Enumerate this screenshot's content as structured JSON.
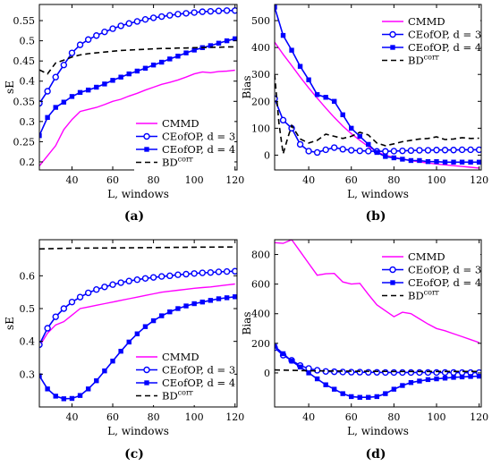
{
  "colors": {
    "cmmd": "#ff00ff",
    "ce3": "#0000ff",
    "ce4": "#0000ff",
    "bd": "#000000"
  },
  "chart_data": [
    {
      "type": "line",
      "caption": "(a)",
      "xlabel": "L, windows",
      "ylabel": "sE",
      "xlim": [
        24,
        121
      ],
      "ylim": [
        0.18,
        0.59
      ],
      "xticks": [
        40,
        60,
        80,
        100,
        120
      ],
      "yticks": [
        0.2,
        0.25,
        0.3,
        0.35,
        0.4,
        0.45,
        0.5,
        0.55
      ],
      "ytick_labels": [
        "0.2",
        "0.25",
        "0.3",
        "0.35",
        "0.4",
        "0.45",
        "0.5",
        "0.55"
      ],
      "legend_position": "bottom-right",
      "series": [
        {
          "name": "CMMD",
          "key": "cmmd",
          "x": [
            24,
            28,
            32,
            36,
            40,
            44,
            48,
            52,
            56,
            60,
            64,
            68,
            72,
            76,
            80,
            84,
            88,
            92,
            96,
            100,
            104,
            108,
            112,
            116,
            120
          ],
          "y": [
            0.19,
            0.215,
            0.24,
            0.28,
            0.305,
            0.325,
            0.33,
            0.335,
            0.342,
            0.35,
            0.355,
            0.363,
            0.37,
            0.378,
            0.385,
            0.392,
            0.397,
            0.403,
            0.41,
            0.418,
            0.423,
            0.421,
            0.424,
            0.425,
            0.427
          ]
        },
        {
          "name": "CEofOP, d = 3",
          "key": "ce3",
          "x": [
            24,
            28,
            32,
            36,
            40,
            44,
            48,
            52,
            56,
            60,
            64,
            68,
            72,
            76,
            80,
            84,
            88,
            92,
            96,
            100,
            104,
            108,
            112,
            116,
            120
          ],
          "y": [
            0.345,
            0.375,
            0.41,
            0.44,
            0.47,
            0.49,
            0.503,
            0.513,
            0.522,
            0.53,
            0.537,
            0.543,
            0.548,
            0.553,
            0.557,
            0.56,
            0.563,
            0.566,
            0.568,
            0.57,
            0.572,
            0.573,
            0.574,
            0.575,
            0.575
          ]
        },
        {
          "name": "CEofOP, d = 4",
          "key": "ce4",
          "x": [
            24,
            28,
            32,
            36,
            40,
            44,
            48,
            52,
            56,
            60,
            64,
            68,
            72,
            76,
            80,
            84,
            88,
            92,
            96,
            100,
            104,
            108,
            112,
            116,
            120
          ],
          "y": [
            0.265,
            0.31,
            0.335,
            0.348,
            0.362,
            0.372,
            0.378,
            0.385,
            0.393,
            0.402,
            0.41,
            0.418,
            0.425,
            0.432,
            0.44,
            0.447,
            0.455,
            0.462,
            0.47,
            0.477,
            0.483,
            0.488,
            0.494,
            0.5,
            0.505
          ]
        },
        {
          "name": "BD",
          "name_sup": "corr",
          "key": "bd",
          "x": [
            24,
            28,
            32,
            36,
            40,
            44,
            48,
            52,
            56,
            60,
            64,
            68,
            72,
            76,
            80,
            84,
            88,
            92,
            96,
            100,
            104,
            108,
            112,
            116,
            120
          ],
          "y": [
            0.428,
            0.418,
            0.445,
            0.452,
            0.46,
            0.465,
            0.468,
            0.47,
            0.472,
            0.474,
            0.476,
            0.477,
            0.478,
            0.479,
            0.48,
            0.481,
            0.481,
            0.482,
            0.482,
            0.483,
            0.483,
            0.484,
            0.484,
            0.485,
            0.485
          ]
        }
      ]
    },
    {
      "type": "line",
      "caption": "(b)",
      "xlabel": "L, windows",
      "ylabel": "Bias",
      "xlim": [
        24,
        121
      ],
      "ylim": [
        -55,
        560
      ],
      "xticks": [
        40,
        60,
        80,
        100,
        120
      ],
      "yticks": [
        0,
        100,
        200,
        300,
        400,
        500
      ],
      "ytick_labels": [
        "0",
        "100",
        "200",
        "300",
        "400",
        "500"
      ],
      "legend_position": "top-right",
      "series": [
        {
          "name": "CMMD",
          "key": "cmmd",
          "x": [
            24,
            28,
            32,
            36,
            40,
            44,
            48,
            52,
            56,
            60,
            64,
            68,
            72,
            76,
            80,
            84,
            88,
            92,
            96,
            100,
            104,
            108,
            112,
            116,
            120
          ],
          "y": [
            420,
            375,
            333,
            290,
            250,
            212,
            175,
            140,
            108,
            80,
            55,
            32,
            12,
            0,
            -8,
            -14,
            -20,
            -25,
            -29,
            -33,
            -36,
            -39,
            -42,
            -45,
            -48
          ]
        },
        {
          "name": "CEofOP, d = 3",
          "key": "ce3",
          "x": [
            24,
            28,
            32,
            36,
            40,
            44,
            48,
            52,
            56,
            60,
            64,
            68,
            72,
            76,
            80,
            84,
            88,
            92,
            96,
            100,
            104,
            108,
            112,
            116,
            120
          ],
          "y": [
            210,
            130,
            100,
            40,
            15,
            10,
            20,
            28,
            22,
            18,
            16,
            15,
            14,
            14,
            15,
            16,
            17,
            18,
            18,
            19,
            19,
            19,
            20,
            20,
            20
          ]
        },
        {
          "name": "CEofOP, d = 4",
          "key": "ce4",
          "x": [
            24,
            28,
            32,
            36,
            40,
            44,
            48,
            52,
            56,
            60,
            64,
            68,
            72,
            76,
            80,
            84,
            88,
            92,
            96,
            100,
            104,
            108,
            112,
            116,
            120
          ],
          "y": [
            550,
            445,
            390,
            330,
            280,
            225,
            215,
            200,
            150,
            100,
            70,
            40,
            10,
            -5,
            -10,
            -15,
            -20,
            -20,
            -24,
            -24,
            -26,
            -26,
            -26,
            -26,
            -26
          ]
        },
        {
          "name": "BD",
          "name_sup": "corr",
          "key": "bd",
          "x": [
            24,
            26,
            28,
            30,
            32,
            36,
            40,
            44,
            48,
            52,
            56,
            60,
            64,
            68,
            72,
            76,
            80,
            84,
            88,
            92,
            96,
            100,
            104,
            108,
            112,
            116,
            120
          ],
          "y": [
            300,
            120,
            5,
            60,
            110,
            60,
            45,
            55,
            78,
            70,
            62,
            70,
            85,
            75,
            45,
            35,
            42,
            50,
            55,
            60,
            62,
            68,
            58,
            60,
            65,
            62,
            63
          ]
        }
      ]
    },
    {
      "type": "line",
      "caption": "(c)",
      "xlabel": "L, windows",
      "ylabel": "sE",
      "xlim": [
        24,
        121
      ],
      "ylim": [
        0.2,
        0.71
      ],
      "xticks": [
        40,
        60,
        80,
        100,
        120
      ],
      "yticks": [
        0.3,
        0.4,
        0.5,
        0.6
      ],
      "ytick_labels": [
        "0.3",
        "0.4",
        "0.5",
        "0.6"
      ],
      "legend_position": "bottom-right",
      "series": [
        {
          "name": "CMMD",
          "key": "cmmd",
          "x": [
            24,
            28,
            32,
            36,
            40,
            44,
            48,
            52,
            56,
            60,
            64,
            68,
            72,
            76,
            80,
            84,
            88,
            92,
            96,
            100,
            104,
            108,
            112,
            116,
            120
          ],
          "y": [
            0.385,
            0.425,
            0.45,
            0.46,
            0.48,
            0.5,
            0.505,
            0.51,
            0.515,
            0.52,
            0.525,
            0.53,
            0.535,
            0.54,
            0.545,
            0.55,
            0.553,
            0.556,
            0.559,
            0.562,
            0.564,
            0.566,
            0.569,
            0.572,
            0.575
          ]
        },
        {
          "name": "CEofOP, d = 3",
          "key": "ce3",
          "x": [
            24,
            28,
            32,
            36,
            40,
            44,
            48,
            52,
            56,
            60,
            64,
            68,
            72,
            76,
            80,
            84,
            88,
            92,
            96,
            100,
            104,
            108,
            112,
            116,
            120
          ],
          "y": [
            0.39,
            0.44,
            0.475,
            0.5,
            0.52,
            0.535,
            0.548,
            0.558,
            0.566,
            0.573,
            0.579,
            0.584,
            0.588,
            0.592,
            0.595,
            0.598,
            0.6,
            0.603,
            0.605,
            0.607,
            0.609,
            0.61,
            0.612,
            0.613,
            0.614
          ]
        },
        {
          "name": "CEofOP, d = 4",
          "key": "ce4",
          "x": [
            24,
            28,
            32,
            36,
            40,
            44,
            48,
            52,
            56,
            60,
            64,
            68,
            72,
            76,
            80,
            84,
            88,
            92,
            96,
            100,
            104,
            108,
            112,
            116,
            120
          ],
          "y": [
            0.295,
            0.255,
            0.233,
            0.225,
            0.226,
            0.235,
            0.255,
            0.28,
            0.31,
            0.34,
            0.37,
            0.398,
            0.423,
            0.445,
            0.463,
            0.478,
            0.49,
            0.5,
            0.508,
            0.515,
            0.52,
            0.525,
            0.53,
            0.533,
            0.536
          ]
        },
        {
          "name": "BD",
          "name_sup": "corr",
          "key": "bd",
          "x": [
            24,
            40,
            60,
            80,
            100,
            120
          ],
          "y": [
            0.682,
            0.684,
            0.685,
            0.686,
            0.687,
            0.688
          ]
        }
      ]
    },
    {
      "type": "line",
      "caption": "(d)",
      "xlabel": "L, windows",
      "ylabel": "Bias",
      "xlim": [
        24,
        121
      ],
      "ylim": [
        -230,
        900
      ],
      "xticks": [
        40,
        60,
        80,
        100,
        120
      ],
      "yticks": [
        0,
        200,
        400,
        600,
        800
      ],
      "ytick_labels": [
        "0",
        "200",
        "400",
        "600",
        "800"
      ],
      "legend_position": "top-right",
      "series": [
        {
          "name": "CMMD",
          "key": "cmmd",
          "x": [
            24,
            28,
            32,
            36,
            40,
            44,
            48,
            52,
            56,
            60,
            64,
            68,
            72,
            76,
            80,
            84,
            88,
            92,
            96,
            100,
            104,
            108,
            112,
            116,
            120
          ],
          "y": [
            880,
            875,
            900,
            820,
            740,
            660,
            670,
            672,
            615,
            600,
            605,
            530,
            460,
            420,
            380,
            410,
            400,
            365,
            330,
            300,
            285,
            265,
            245,
            225,
            205
          ]
        },
        {
          "name": "CEofOP, d = 3",
          "key": "ce3",
          "x": [
            24,
            28,
            32,
            36,
            40,
            44,
            48,
            52,
            56,
            60,
            64,
            68,
            72,
            76,
            80,
            84,
            88,
            92,
            96,
            100,
            104,
            108,
            112,
            116,
            120
          ],
          "y": [
            170,
            120,
            85,
            50,
            30,
            18,
            10,
            8,
            6,
            5,
            5,
            4,
            4,
            3,
            3,
            3,
            3,
            3,
            3,
            3,
            3,
            3,
            2,
            2,
            2
          ]
        },
        {
          "name": "CEofOP, d = 4",
          "key": "ce4",
          "x": [
            24,
            28,
            32,
            36,
            40,
            44,
            48,
            52,
            56,
            60,
            64,
            68,
            72,
            76,
            80,
            84,
            88,
            92,
            96,
            100,
            104,
            108,
            112,
            116,
            120
          ],
          "y": [
            180,
            130,
            80,
            40,
            0,
            -40,
            -80,
            -110,
            -140,
            -160,
            -165,
            -165,
            -160,
            -140,
            -110,
            -85,
            -65,
            -55,
            -45,
            -40,
            -35,
            -30,
            -27,
            -24,
            -22
          ]
        },
        {
          "name": "BD",
          "name_sup": "corr",
          "key": "bd",
          "x": [
            24,
            40,
            60,
            80,
            100,
            120
          ],
          "y": [
            20,
            15,
            12,
            10,
            10,
            10
          ]
        }
      ]
    }
  ]
}
